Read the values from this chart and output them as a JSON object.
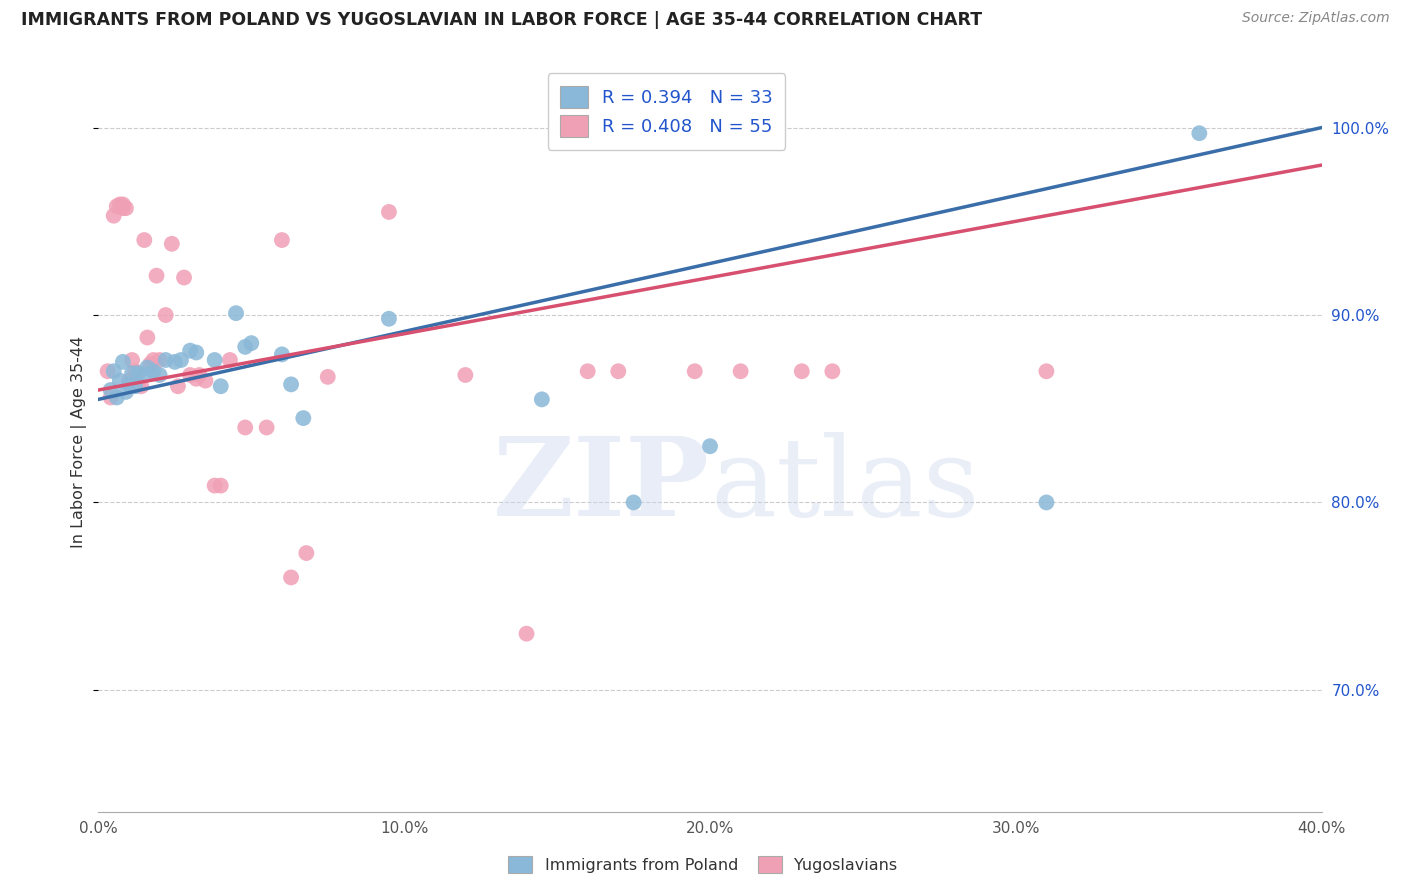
{
  "title": "IMMIGRANTS FROM POLAND VS YUGOSLAVIAN IN LABOR FORCE | AGE 35-44 CORRELATION CHART",
  "source": "Source: ZipAtlas.com",
  "ylabel": "In Labor Force | Age 35-44",
  "xlim": [
    0.0,
    0.4
  ],
  "ylim": [
    0.635,
    1.03
  ],
  "xticks": [
    0.0,
    0.05,
    0.1,
    0.15,
    0.2,
    0.25,
    0.3,
    0.35,
    0.4
  ],
  "xticklabels": [
    "0.0%",
    "",
    "10.0%",
    "",
    "20.0%",
    "",
    "30.0%",
    "",
    "40.0%"
  ],
  "yticks": [
    0.7,
    0.8,
    0.9,
    1.0
  ],
  "yticklabels": [
    "70.0%",
    "80.0%",
    "90.0%",
    "100.0%"
  ],
  "poland_R": 0.394,
  "poland_N": 33,
  "yugoslav_R": 0.408,
  "yugoslav_N": 55,
  "poland_color": "#8ab8d8",
  "yugoslav_color": "#f0a0b5",
  "poland_line_color": "#3a6ea8",
  "yugoslav_line_color": "#d85070",
  "poland_line_x0": 0.0,
  "poland_line_y0": 0.855,
  "poland_line_x1": 0.4,
  "poland_line_y1": 1.0,
  "yugoslav_line_x0": 0.0,
  "yugoslav_line_y0": 0.86,
  "yugoslav_line_x1": 0.4,
  "yugoslav_line_y1": 0.98,
  "poland_x": [
    0.004,
    0.005,
    0.006,
    0.007,
    0.008,
    0.009,
    0.01,
    0.011,
    0.012,
    0.013,
    0.015,
    0.016,
    0.018,
    0.02,
    0.022,
    0.025,
    0.027,
    0.03,
    0.032,
    0.038,
    0.04,
    0.045,
    0.048,
    0.05,
    0.06,
    0.063,
    0.067,
    0.095,
    0.145,
    0.175,
    0.2,
    0.31,
    0.36
  ],
  "poland_y": [
    0.86,
    0.87,
    0.856,
    0.865,
    0.875,
    0.859,
    0.863,
    0.869,
    0.862,
    0.869,
    0.868,
    0.872,
    0.87,
    0.868,
    0.876,
    0.875,
    0.876,
    0.881,
    0.88,
    0.876,
    0.862,
    0.901,
    0.883,
    0.885,
    0.879,
    0.863,
    0.845,
    0.898,
    0.855,
    0.8,
    0.83,
    0.8,
    0.997
  ],
  "yugoslav_x": [
    0.003,
    0.004,
    0.005,
    0.006,
    0.007,
    0.008,
    0.008,
    0.009,
    0.01,
    0.011,
    0.012,
    0.013,
    0.014,
    0.015,
    0.016,
    0.017,
    0.018,
    0.019,
    0.02,
    0.022,
    0.024,
    0.026,
    0.028,
    0.03,
    0.032,
    0.033,
    0.035,
    0.038,
    0.04,
    0.043,
    0.048,
    0.055,
    0.06,
    0.063,
    0.068,
    0.075,
    0.095,
    0.12,
    0.14,
    0.16,
    0.17,
    0.195,
    0.21,
    0.23,
    0.24,
    0.31
  ],
  "yugoslav_y": [
    0.87,
    0.856,
    0.953,
    0.958,
    0.959,
    0.959,
    0.957,
    0.957,
    0.865,
    0.876,
    0.87,
    0.863,
    0.862,
    0.94,
    0.888,
    0.874,
    0.876,
    0.921,
    0.876,
    0.9,
    0.938,
    0.862,
    0.92,
    0.868,
    0.866,
    0.868,
    0.865,
    0.809,
    0.809,
    0.876,
    0.84,
    0.84,
    0.94,
    0.76,
    0.773,
    0.867,
    0.955,
    0.868,
    0.73,
    0.87,
    0.87,
    0.87,
    0.87,
    0.87,
    0.87,
    0.87
  ]
}
